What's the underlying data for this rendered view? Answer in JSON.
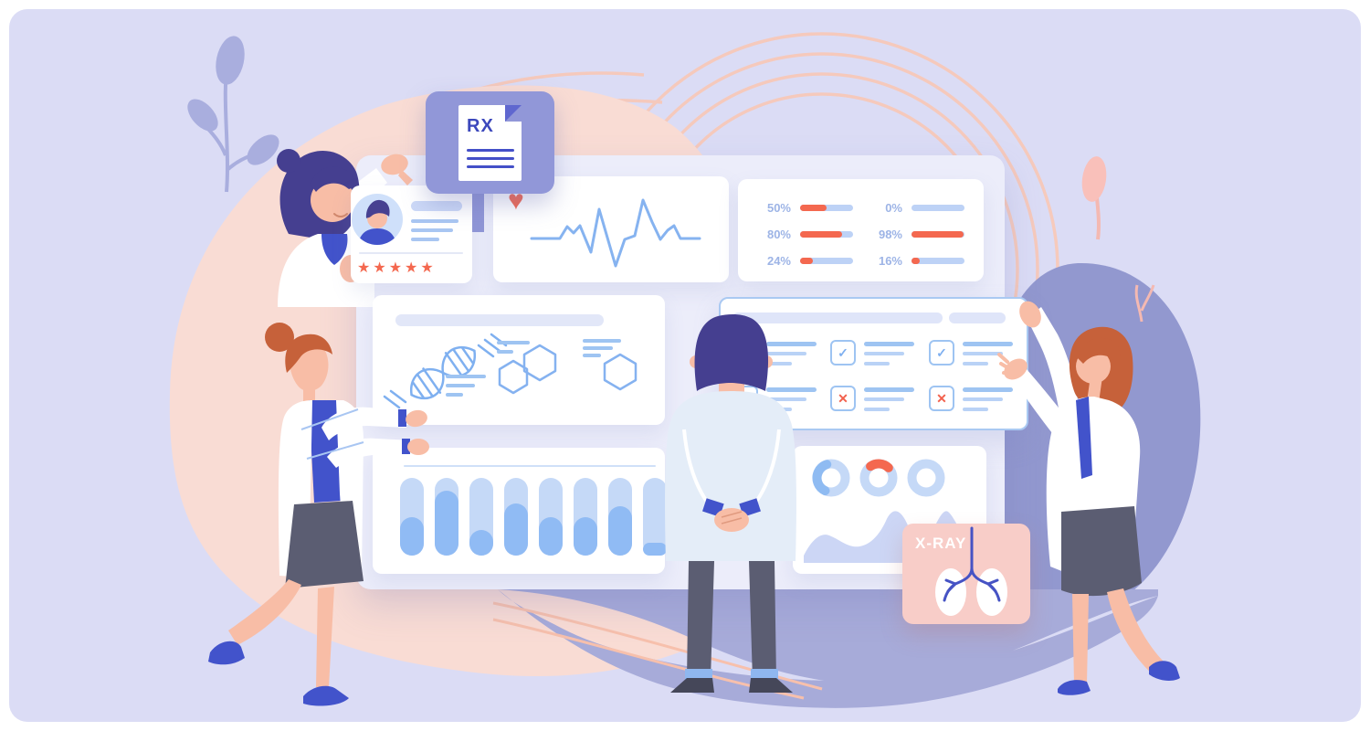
{
  "colors": {
    "background": "#dbdcf5",
    "panel": "#ecedfa",
    "card": "#ffffff",
    "coral": "#f4684f",
    "bar_blue": "#90bbf4",
    "track_blue": "#c5d9f7",
    "line_blue": "#9ec4f2",
    "label_blue": "#9db4e6",
    "indigo": "#3c48bc",
    "rx_purple": "#9197d8",
    "xray_pink": "#f8cdc8",
    "peach_blob": "#f9dcd4",
    "periwinkle_blob": "#9298cf"
  },
  "cards": {
    "patient_profile": {
      "avatar_icon": "patient-avatar-icon",
      "rating_stars": 5
    },
    "prescription": {
      "label": "RX",
      "icon": "rx-document-icon"
    },
    "heart_rate": {
      "icon": "heart-icon"
    },
    "vitals_stats": {
      "columns": [
        {
          "rows": [
            {
              "label": "50%",
              "value": 50
            },
            {
              "label": "80%",
              "value": 80
            },
            {
              "label": "24%",
              "value": 24
            }
          ]
        },
        {
          "rows": [
            {
              "label": "0%",
              "value": 0
            },
            {
              "label": "98%",
              "value": 98
            },
            {
              "label": "16%",
              "value": 16
            }
          ]
        }
      ]
    },
    "research": {
      "icons": [
        "dna-icon",
        "molecule-hexagons-icon",
        "hexagon-icon"
      ]
    },
    "checklist": {
      "items": [
        {
          "status": "cross"
        },
        {
          "status": "check"
        },
        {
          "status": "check"
        },
        {
          "status": "cross"
        },
        {
          "status": "cross"
        },
        {
          "status": "cross"
        }
      ]
    },
    "bar_chart": {
      "values_pct": [
        49,
        84,
        33,
        67,
        49,
        49,
        63,
        16
      ]
    },
    "donut_panel": {
      "donuts": [
        {
          "segment": "blue",
          "fraction": 0.38
        },
        {
          "segment": "red",
          "fraction": 0.22
        },
        {
          "segment": "none",
          "fraction": 0
        }
      ]
    },
    "xray": {
      "label": "X-RAY",
      "icon": "lungs-icon"
    }
  },
  "chart_data": [
    {
      "type": "bar",
      "name": "progress-percentages",
      "orientation": "horizontal",
      "categories": [
        "50%",
        "80%",
        "24%",
        "0%",
        "98%",
        "16%"
      ],
      "values": [
        50,
        80,
        24,
        0,
        98,
        16
      ],
      "fill_color": "#f4684f",
      "track_color": "#bdd2f6",
      "title": ""
    },
    {
      "type": "line",
      "name": "ecg-heartbeat",
      "color": "#86b3f0"
    },
    {
      "type": "bar",
      "name": "vertical-bars",
      "values": [
        49,
        84,
        33,
        67,
        49,
        49,
        63,
        16
      ],
      "ylim": [
        0,
        100
      ],
      "fill_color": "#90bbf4",
      "track_color": "#c5d9f7"
    },
    {
      "type": "pie",
      "name": "donut-rings",
      "ring_color": "#c5d9f7",
      "donuts": [
        {
          "segment_color": "#8fbbf2",
          "fraction": 0.38,
          "start_deg": 115
        },
        {
          "segment_color": "#f4684f",
          "fraction": 0.22,
          "start_deg": 235
        },
        {
          "segment_color": "none",
          "fraction": 0,
          "start_deg": 0
        }
      ]
    },
    {
      "type": "area",
      "name": "trend-wave",
      "color": "#ccd6f5"
    }
  ]
}
